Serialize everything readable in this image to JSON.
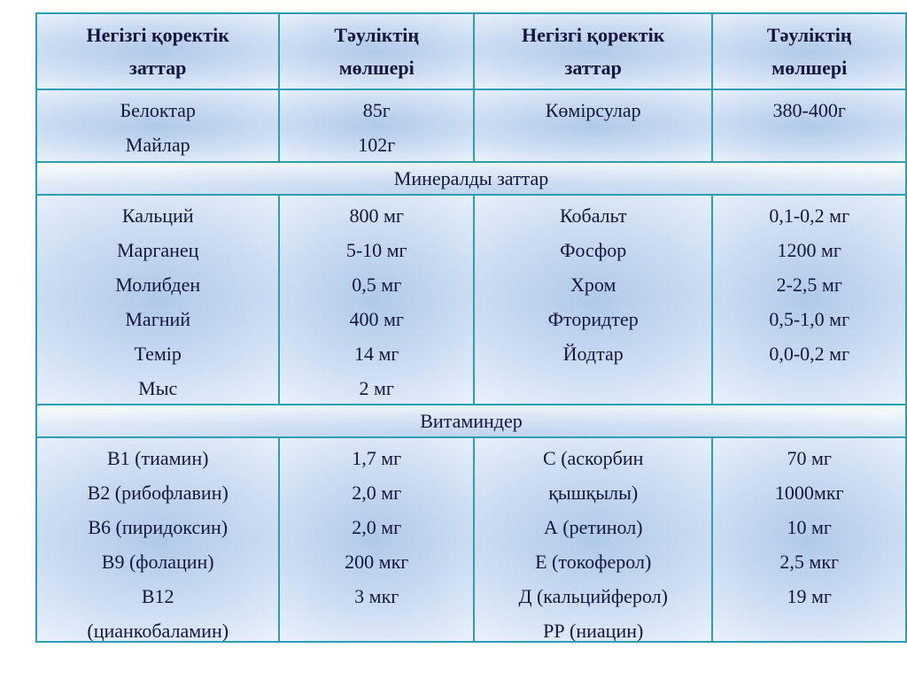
{
  "colors": {
    "border": "#2d9db4",
    "text": "#15153f",
    "cell_fill": "#d8e5f5"
  },
  "table": {
    "header": [
      "Негізгі қоректік\nзаттар",
      "Тәуліктің\nмөлшері",
      "Негізгі қоректік\nзаттар",
      "Тәуліктің\nмөлшері"
    ],
    "macronutrients": {
      "left_names": "Белоктар\nМайлар",
      "left_amounts": "85г\n102г",
      "right_names": "Көмірсулар",
      "right_amounts": "380-400г"
    },
    "minerals_section_title": "Минералды заттар",
    "minerals": {
      "left_names": "Кальций\nМарганец\nМолибден\nМагний\nТемір\nМыс",
      "left_amounts": "800 мг\n5-10 мг\n0,5 мг\n400 мг\n14 мг\n2 мг",
      "right_names": "Кобальт\nФосфор\nХром\nФторидтер\nЙодтар",
      "right_amounts": "0,1-0,2 мг\n1200 мг\n2-2,5 мг\n0,5-1,0 мг\n0,0-0,2 мг"
    },
    "vitamins_section_title": "Витаминдер",
    "vitamins": {
      "left_names": "В1 (тиамин)\nВ2 (рибофлавин)\nВ6 (пиридоксин)\nВ9 (фолацин)\nВ12\n(цианкобаламин)",
      "left_amounts": "1,7 мг\n2,0 мг\n2,0 мг\n200 мкг\n3 мкг",
      "right_names": "С (аскорбин\nқышқылы)\nА (ретинол)\nЕ (токоферол)\nД (кальцийферол)\nРР (ниацин)",
      "right_amounts": "70 мг\n1000мкг\n10 мг\n2,5 мкг\n19 мг"
    }
  }
}
